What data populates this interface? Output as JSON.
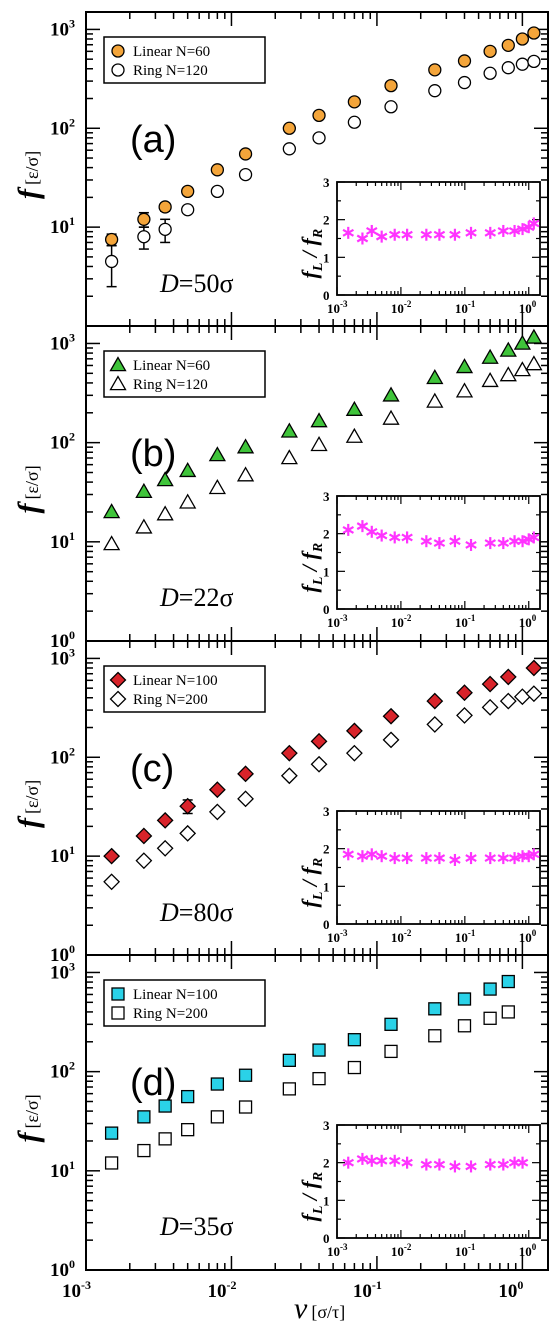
{
  "colors": {
    "orange": "#f4a53a",
    "green": "#3fc43a",
    "red": "#d8232a",
    "cyan": "#2ad2e8",
    "magenta": "#ff33ff",
    "black": "#000000"
  },
  "axes": {
    "y_label": "f",
    "y_unit": "[ε/σ]",
    "x_label": "v",
    "x_unit": "[σ/τ]",
    "inset_y_label": "f_L / f_R",
    "inset_y_main": "f",
    "inset_y_sub1": "L",
    "inset_y_sep": " / ",
    "inset_y_main2": "f",
    "inset_y_sub2": "R",
    "log_base": "10",
    "x_tick_exponents": [
      "-3",
      "-2",
      "-1",
      "0"
    ],
    "y_tick_exponents": [
      "0",
      "1",
      "2",
      "3"
    ],
    "inset_y_ticks": [
      "0",
      "1",
      "2",
      "3"
    ]
  },
  "chart_data": [
    {
      "type": "scatter",
      "panel": "(a)",
      "annotation": "D=50σ",
      "annotation_italic": "D",
      "annotation_rest": "=50σ",
      "xscale": "log",
      "yscale": "log",
      "xlim": [
        0.001,
        1.5
      ],
      "ylim": [
        1,
        1500
      ],
      "marker": "circle",
      "color": "orange",
      "series": [
        {
          "name": "Linear N=60",
          "filled": true,
          "x": [
            0.0015,
            0.0025,
            0.0035,
            0.005,
            0.008,
            0.0125,
            0.025,
            0.04,
            0.07,
            0.125,
            0.25,
            0.4,
            0.6,
            0.8,
            1.0,
            1.2
          ],
          "y": [
            7.5,
            12,
            16,
            23,
            38,
            55,
            100,
            135,
            185,
            270,
            390,
            480,
            600,
            690,
            800,
            920
          ],
          "yerr": [
            1,
            2,
            1.5,
            2,
            0,
            0,
            0,
            0,
            0,
            0,
            0,
            0,
            0,
            0,
            0,
            0
          ]
        },
        {
          "name": "Ring N=120",
          "filled": false,
          "x": [
            0.0015,
            0.0025,
            0.0035,
            0.005,
            0.008,
            0.0125,
            0.025,
            0.04,
            0.07,
            0.125,
            0.25,
            0.4,
            0.6,
            0.8,
            1.0,
            1.2
          ],
          "y": [
            4.5,
            8,
            9.5,
            15,
            23,
            34,
            62,
            80,
            115,
            165,
            240,
            290,
            360,
            410,
            445,
            475
          ],
          "yerr": [
            2,
            2,
            2.5,
            0,
            0,
            0,
            0,
            0,
            0,
            0,
            0,
            0,
            0,
            0,
            0,
            0
          ]
        }
      ],
      "inset": {
        "type": "scatter",
        "marker": "asterisk",
        "color": "magenta",
        "xlim": [
          0.001,
          1.5
        ],
        "ylim": [
          0,
          3
        ],
        "x": [
          0.0015,
          0.0025,
          0.0035,
          0.005,
          0.008,
          0.0125,
          0.025,
          0.04,
          0.07,
          0.125,
          0.25,
          0.4,
          0.6,
          0.8,
          1.0,
          1.2
        ],
        "y": [
          1.65,
          1.5,
          1.7,
          1.55,
          1.6,
          1.6,
          1.6,
          1.6,
          1.6,
          1.65,
          1.65,
          1.7,
          1.7,
          1.75,
          1.8,
          1.9
        ]
      }
    },
    {
      "type": "scatter",
      "panel": "(b)",
      "annotation": "D=22σ",
      "annotation_italic": "D",
      "annotation_rest": "=22σ",
      "xscale": "log",
      "yscale": "log",
      "xlim": [
        0.001,
        1.5
      ],
      "ylim": [
        1,
        1500
      ],
      "marker": "triangle",
      "color": "green",
      "series": [
        {
          "name": "Linear N=60",
          "filled": true,
          "x": [
            0.0015,
            0.0025,
            0.0035,
            0.005,
            0.008,
            0.0125,
            0.025,
            0.04,
            0.07,
            0.125,
            0.25,
            0.4,
            0.6,
            0.8,
            1.0,
            1.2
          ],
          "y": [
            20,
            32,
            42,
            52,
            75,
            90,
            130,
            165,
            215,
            300,
            450,
            580,
            720,
            850,
            1000,
            1150
          ],
          "yerr": [
            0,
            0,
            0,
            0,
            0,
            0,
            0,
            0,
            0,
            0,
            0,
            0,
            0,
            0,
            0,
            0
          ]
        },
        {
          "name": "Ring N=120",
          "filled": false,
          "x": [
            0.0015,
            0.0025,
            0.0035,
            0.005,
            0.008,
            0.0125,
            0.025,
            0.04,
            0.07,
            0.125,
            0.25,
            0.4,
            0.6,
            0.8,
            1.0,
            1.2
          ],
          "y": [
            9.5,
            14,
            19,
            25,
            35,
            47,
            70,
            95,
            115,
            175,
            260,
            330,
            420,
            480,
            540,
            620
          ],
          "yerr": [
            0,
            0,
            0,
            0,
            0,
            0,
            0,
            0,
            0,
            0,
            0,
            0,
            0,
            0,
            0,
            0
          ]
        }
      ],
      "inset": {
        "type": "scatter",
        "marker": "asterisk",
        "color": "magenta",
        "xlim": [
          0.001,
          1.5
        ],
        "ylim": [
          0,
          3
        ],
        "x": [
          0.0015,
          0.0025,
          0.0035,
          0.005,
          0.008,
          0.0125,
          0.025,
          0.04,
          0.07,
          0.125,
          0.25,
          0.4,
          0.6,
          0.8,
          1.0,
          1.2
        ],
        "y": [
          2.1,
          2.2,
          2.05,
          1.95,
          1.9,
          1.9,
          1.8,
          1.75,
          1.8,
          1.7,
          1.75,
          1.75,
          1.8,
          1.8,
          1.85,
          1.9
        ]
      }
    },
    {
      "type": "scatter",
      "panel": "(c)",
      "annotation": "D=80σ",
      "annotation_italic": "D",
      "annotation_rest": "=80σ",
      "xscale": "log",
      "yscale": "log",
      "xlim": [
        0.001,
        1.5
      ],
      "ylim": [
        1,
        1500
      ],
      "marker": "diamond",
      "color": "red",
      "series": [
        {
          "name": "Linear N=100",
          "filled": true,
          "x": [
            0.0015,
            0.0025,
            0.0035,
            0.005,
            0.008,
            0.0125,
            0.025,
            0.04,
            0.07,
            0.125,
            0.25,
            0.4,
            0.6,
            0.8,
            1.2
          ],
          "y": [
            10,
            16,
            23,
            32,
            47,
            68,
            110,
            145,
            185,
            260,
            370,
            450,
            550,
            650,
            800
          ],
          "yerr": [
            0,
            0,
            0,
            5,
            0,
            0,
            0,
            0,
            0,
            0,
            0,
            0,
            0,
            0,
            0
          ]
        },
        {
          "name": "Ring N=200",
          "filled": false,
          "x": [
            0.0015,
            0.0025,
            0.0035,
            0.005,
            0.008,
            0.0125,
            0.025,
            0.04,
            0.07,
            0.125,
            0.25,
            0.4,
            0.6,
            0.8,
            1.0,
            1.2
          ],
          "y": [
            5.5,
            9,
            12,
            17,
            28,
            38,
            65,
            85,
            110,
            150,
            215,
            265,
            320,
            370,
            410,
            440
          ],
          "yerr": [
            0,
            0,
            0,
            0,
            0,
            0,
            0,
            0,
            0,
            0,
            0,
            0,
            0,
            0,
            0,
            0
          ]
        }
      ],
      "inset": {
        "type": "scatter",
        "marker": "asterisk",
        "color": "magenta",
        "xlim": [
          0.001,
          1.5
        ],
        "ylim": [
          0,
          3
        ],
        "x": [
          0.0015,
          0.0025,
          0.0035,
          0.005,
          0.008,
          0.0125,
          0.025,
          0.04,
          0.07,
          0.125,
          0.25,
          0.4,
          0.6,
          0.8,
          1.0,
          1.2
        ],
        "y": [
          1.85,
          1.8,
          1.85,
          1.8,
          1.75,
          1.75,
          1.75,
          1.75,
          1.7,
          1.75,
          1.75,
          1.75,
          1.75,
          1.8,
          1.8,
          1.85
        ]
      }
    },
    {
      "type": "scatter",
      "panel": "(d)",
      "annotation": "D=35σ",
      "annotation_italic": "D",
      "annotation_rest": "=35σ",
      "xscale": "log",
      "yscale": "log",
      "xlim": [
        0.001,
        1.5
      ],
      "ylim": [
        1,
        1500
      ],
      "marker": "square",
      "color": "cyan",
      "series": [
        {
          "name": "Linear N=100",
          "filled": true,
          "x": [
            0.0015,
            0.0025,
            0.0035,
            0.005,
            0.008,
            0.0125,
            0.025,
            0.04,
            0.07,
            0.125,
            0.25,
            0.4,
            0.6,
            0.8
          ],
          "y": [
            24,
            35,
            45,
            56,
            75,
            92,
            130,
            165,
            210,
            300,
            430,
            540,
            680,
            810
          ],
          "yerr": [
            0,
            0,
            0,
            0,
            0,
            0,
            0,
            0,
            0,
            0,
            0,
            0,
            0,
            0
          ]
        },
        {
          "name": "Ring N=200",
          "filled": false,
          "x": [
            0.0015,
            0.0025,
            0.0035,
            0.005,
            0.008,
            0.0125,
            0.025,
            0.04,
            0.07,
            0.125,
            0.25,
            0.4,
            0.6,
            0.8
          ],
          "y": [
            12,
            16,
            21,
            26,
            35,
            44,
            67,
            85,
            110,
            160,
            230,
            290,
            345,
            400
          ],
          "yerr": [
            0,
            0,
            0,
            0,
            0,
            0,
            0,
            0,
            0,
            0,
            0,
            0,
            0,
            0
          ]
        }
      ],
      "inset": {
        "type": "scatter",
        "marker": "asterisk",
        "color": "magenta",
        "xlim": [
          0.001,
          1.5
        ],
        "ylim": [
          0,
          3
        ],
        "x": [
          0.0015,
          0.0025,
          0.0035,
          0.005,
          0.008,
          0.0125,
          0.025,
          0.04,
          0.07,
          0.125,
          0.25,
          0.4,
          0.6,
          0.8
        ],
        "y": [
          2.0,
          2.1,
          2.05,
          2.05,
          2.05,
          2.0,
          1.95,
          1.95,
          1.9,
          1.9,
          1.95,
          1.95,
          2.0,
          2.0
        ]
      }
    }
  ]
}
